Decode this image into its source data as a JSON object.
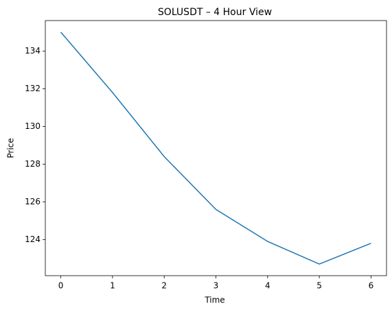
{
  "chart_data": {
    "type": "line",
    "title": "SOLUSDT – 4 Hour View",
    "x_label": "Time",
    "y_label": "Price",
    "x": [
      0,
      1,
      2,
      3,
      4,
      5,
      6
    ],
    "series": [
      {
        "color": "#1f77b4",
        "values": [
          135,
          131.8,
          128.4,
          125.6,
          123.9,
          122.7,
          123.8
        ]
      }
    ],
    "xlim": [
      -0.3,
      6.3
    ],
    "xticks": [
      0,
      1,
      2,
      3,
      4,
      5,
      6
    ],
    "ylim": [
      122.085,
      135.615
    ],
    "yticks": [
      124,
      126,
      128,
      130,
      132,
      134
    ],
    "grid": false
  }
}
